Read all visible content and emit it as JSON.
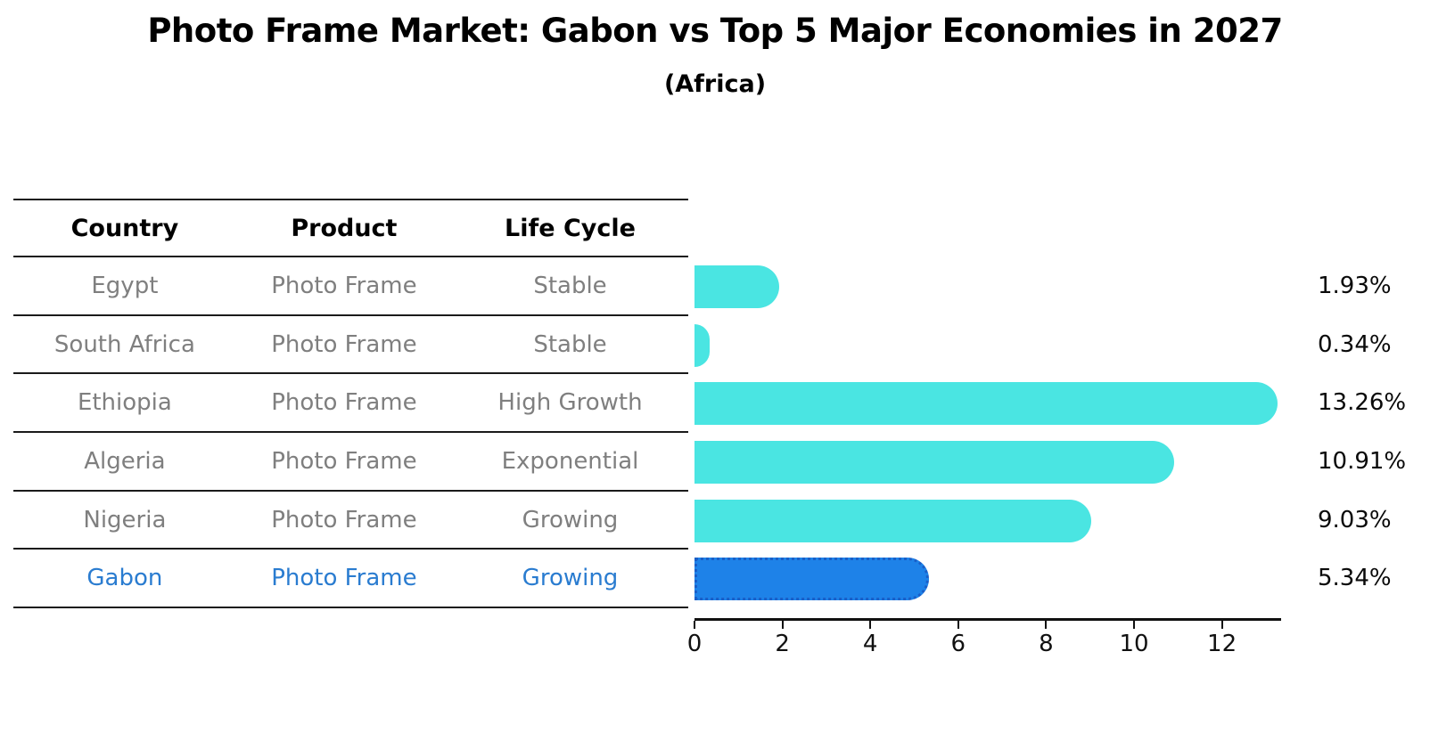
{
  "title": "Photo Frame Market: Gabon vs Top 5 Major Economies in 2027",
  "subtitle": "(Africa)",
  "table": {
    "headers": [
      "Country",
      "Product",
      "Life Cycle"
    ],
    "rows": [
      {
        "country": "Egypt",
        "product": "Photo Frame",
        "life_cycle": "Stable",
        "highlight": false
      },
      {
        "country": "South Africa",
        "product": "Photo Frame",
        "life_cycle": "Stable",
        "highlight": false
      },
      {
        "country": "Ethiopia",
        "product": "Photo Frame",
        "life_cycle": "High Growth",
        "highlight": false
      },
      {
        "country": "Algeria",
        "product": "Photo Frame",
        "life_cycle": "Exponential",
        "highlight": false
      },
      {
        "country": "Nigeria",
        "product": "Photo Frame",
        "life_cycle": "Growing",
        "highlight": false
      },
      {
        "country": "Gabon",
        "product": "Photo Frame",
        "life_cycle": "Growing",
        "highlight": true
      }
    ]
  },
  "chart_data": {
    "type": "bar",
    "orientation": "horizontal",
    "title": "Photo Frame Market: Gabon vs Top 5 Major Economies in 2027",
    "subtitle": "(Africa)",
    "categories": [
      "Egypt",
      "South Africa",
      "Ethiopia",
      "Algeria",
      "Nigeria",
      "Gabon"
    ],
    "values": [
      1.93,
      0.34,
      13.26,
      10.91,
      9.03,
      5.34
    ],
    "value_labels": [
      "1.93%",
      "0.34%",
      "13.26%",
      "10.91%",
      "9.03%",
      "5.34%"
    ],
    "x_ticks": [
      0,
      2,
      4,
      6,
      8,
      10,
      12
    ],
    "xlim": [
      0,
      13.35
    ],
    "grid": false,
    "legend": "none",
    "highlight_index": 5
  },
  "colors": {
    "bar_color": "#4AE5E2",
    "highlight_bar_color": "#1E82E8",
    "highlight_border_color": "#1A5FC8",
    "row_text": "#7f7f7f",
    "highlight_text": "#2A7CD0",
    "axis_color": "#111111"
  }
}
